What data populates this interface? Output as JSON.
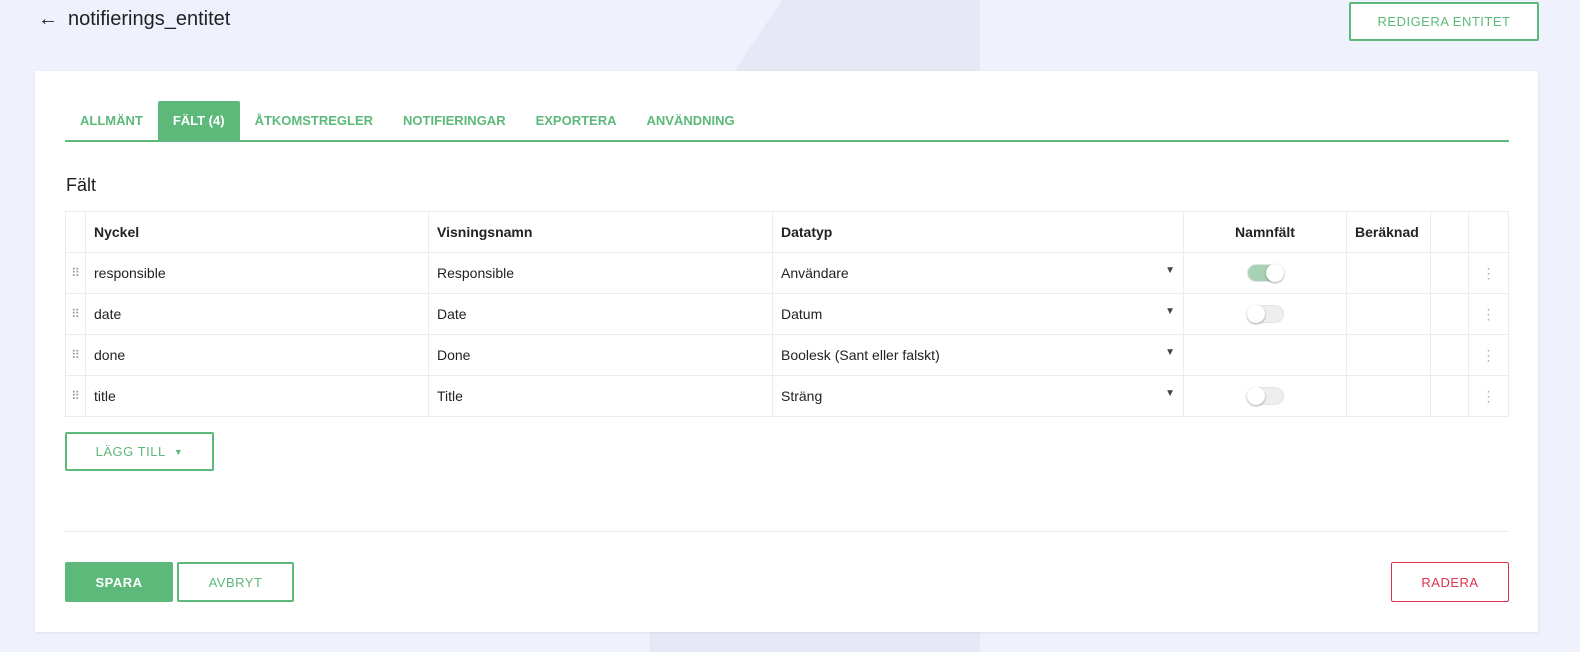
{
  "header": {
    "title": "notifierings_entitet",
    "back_icon": "arrow-left-icon",
    "edit_label": "REDIGERA ENTITET"
  },
  "tabs": [
    {
      "label": "ALLMÄNT"
    },
    {
      "label": "FÄLT (4)",
      "active": true
    },
    {
      "label": "ÅTKOMSTREGLER"
    },
    {
      "label": "NOTIFIERINGAR"
    },
    {
      "label": "EXPORTERA"
    },
    {
      "label": "ANVÄNDNING"
    }
  ],
  "section_title": "Fält",
  "table": {
    "headers": [
      "Nyckel",
      "Visningsnamn",
      "Datatyp",
      "Namnfält",
      "Beräknad"
    ],
    "rows": [
      {
        "key": "responsible",
        "display": "Responsible",
        "type": "Användare",
        "name_field": true
      },
      {
        "key": "date",
        "display": "Date",
        "type": "Datum",
        "name_field": false
      },
      {
        "key": "done",
        "display": "Done",
        "type": "Boolesk (Sant eller falskt)",
        "name_field": null
      },
      {
        "key": "title",
        "display": "Title",
        "type": "Sträng",
        "name_field": false
      }
    ]
  },
  "add_label": "LÄGG TILL",
  "save_label": "SPARA",
  "cancel_label": "AVBRYT",
  "delete_label": "RADERA",
  "colors": {
    "accent": "#5cb97a",
    "danger": "#e0314b"
  }
}
